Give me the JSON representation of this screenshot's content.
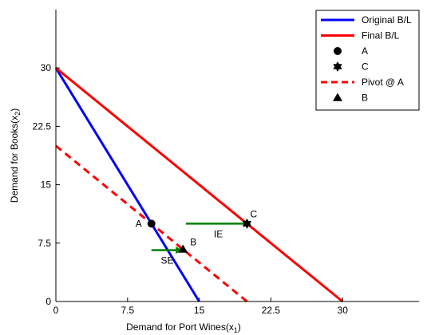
{
  "chart_data": {
    "type": "line",
    "xlabel": "Demand for Port Wines(x",
    "xlabel_sub": "1",
    "xlabel_end": ")",
    "ylabel": "Demand for Books(x",
    "ylabel_sub": "2",
    "ylabel_end": ")",
    "xlim": [
      0,
      38
    ],
    "ylim": [
      0,
      37.5
    ],
    "xticks": [
      0,
      7.5,
      15,
      22.5,
      30
    ],
    "xtick_labels": [
      "0",
      "7.5",
      "15",
      "22.5",
      "30"
    ],
    "yticks": [
      0,
      7.5,
      15,
      22.5,
      30
    ],
    "ytick_labels": [
      "0",
      "7.5",
      "15",
      "22.5",
      "30"
    ],
    "grid": false,
    "legend_position": "top-right",
    "series": [
      {
        "name": "Original B/L",
        "type": "line",
        "color": "#0000ff",
        "dash": "solid",
        "x": [
          0,
          15
        ],
        "y": [
          30,
          0
        ]
      },
      {
        "name": "Final B/L",
        "type": "line",
        "color": "#ff0000",
        "dash": "solid",
        "x": [
          0,
          30
        ],
        "y": [
          30,
          0
        ]
      },
      {
        "name": "A",
        "type": "marker",
        "marker": "circle",
        "color": "#000000",
        "x": [
          10
        ],
        "y": [
          10
        ]
      },
      {
        "name": "C",
        "type": "marker",
        "marker": "hexagram",
        "color": "#000000",
        "x": [
          20
        ],
        "y": [
          10
        ]
      },
      {
        "name": "Pivot @ A",
        "type": "line",
        "color": "#ff0000",
        "dash": "dashed",
        "x": [
          0,
          20
        ],
        "y": [
          20,
          0
        ]
      },
      {
        "name": "B",
        "type": "marker",
        "marker": "triangle",
        "color": "#000000",
        "x": [
          13.3
        ],
        "y": [
          6.7
        ]
      }
    ],
    "arrows": [
      {
        "label": "SE",
        "color": "#008000",
        "x": [
          10,
          13.3
        ],
        "y": [
          6.6,
          6.6
        ]
      },
      {
        "label": "IE",
        "color": "#008000",
        "x": [
          13.6,
          20.4
        ],
        "y": [
          10,
          10
        ]
      }
    ],
    "point_labels": [
      {
        "text": "A",
        "x": 10,
        "y": 10
      },
      {
        "text": "B",
        "x": 13.3,
        "y": 6.7
      },
      {
        "text": "C",
        "x": 20,
        "y": 10
      }
    ]
  }
}
